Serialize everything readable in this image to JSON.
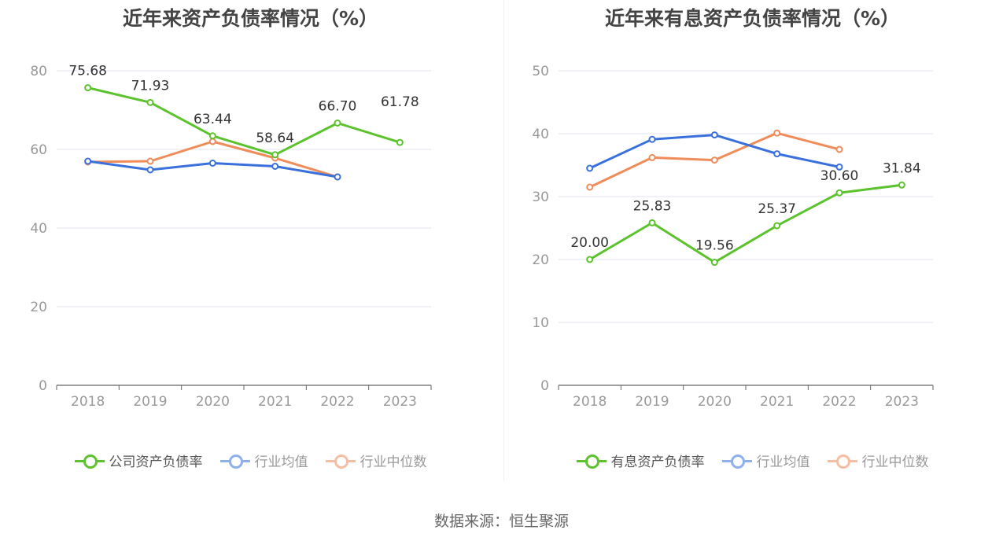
{
  "footer": {
    "source": "数据来源：恒生聚源"
  },
  "colors": {
    "company": "#5cc22d",
    "avg": "#3a70dc",
    "median": "#f08c5a",
    "avg_legend": "#8fb0ef",
    "median_legend": "#f7bda2"
  },
  "chart_data": [
    {
      "type": "line",
      "title": "近年来资产负债率情况（%）",
      "categories": [
        "2018",
        "2019",
        "2020",
        "2021",
        "2022",
        "2023"
      ],
      "ylim": [
        0,
        80
      ],
      "yticks": [
        "0",
        "20",
        "40",
        "60",
        "80"
      ],
      "grid": true,
      "legend_position": "bottom",
      "series": [
        {
          "name": "公司资产负债率",
          "values": [
            75.68,
            71.93,
            63.44,
            58.64,
            66.7,
            61.78
          ],
          "labels": [
            "75.68",
            "71.93",
            "63.44",
            "58.64",
            "66.70",
            "61.78"
          ]
        },
        {
          "name": "行业均值",
          "values": [
            57.0,
            54.8,
            56.5,
            55.7,
            53.0,
            null
          ]
        },
        {
          "name": "行业中位数",
          "values": [
            56.8,
            57.0,
            62.0,
            57.8,
            53.0,
            null
          ]
        }
      ]
    },
    {
      "type": "line",
      "title": "近年来有息资产负债率情况（%）",
      "categories": [
        "2018",
        "2019",
        "2020",
        "2021",
        "2022",
        "2023"
      ],
      "ylim": [
        0,
        50
      ],
      "yticks": [
        "0",
        "10",
        "20",
        "30",
        "40",
        "50"
      ],
      "grid": true,
      "legend_position": "bottom",
      "series": [
        {
          "name": "有息资产负债率",
          "values": [
            20.0,
            25.83,
            19.56,
            25.37,
            30.6,
            31.84
          ],
          "labels": [
            "20.00",
            "25.83",
            "19.56",
            "25.37",
            "30.60",
            "31.84"
          ]
        },
        {
          "name": "行业均值",
          "values": [
            34.5,
            39.1,
            39.8,
            36.8,
            34.7,
            null
          ]
        },
        {
          "name": "行业中位数",
          "values": [
            31.5,
            36.2,
            35.8,
            40.1,
            37.5,
            null
          ]
        }
      ]
    }
  ]
}
